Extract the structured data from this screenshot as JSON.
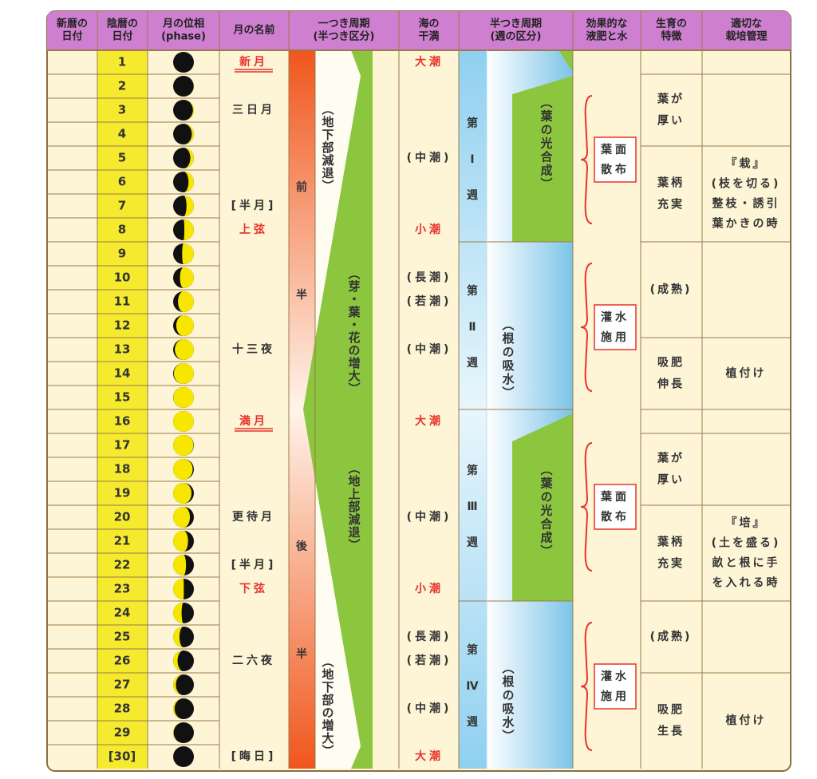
{
  "header": {
    "columns": [
      [
        "新暦の",
        "日付"
      ],
      [
        "陰暦の",
        "日付"
      ],
      [
        "月の位相",
        "(phase)"
      ],
      [
        "月の名前"
      ],
      [
        "一つき周期",
        "(半つき区分)"
      ],
      [
        "海の",
        "干満"
      ],
      [
        "半つき周期",
        "(週の区分)"
      ],
      [
        "効果的な",
        "液肥と水"
      ],
      [
        "生育の",
        "特徴"
      ],
      [
        "適切な",
        "栽培管理"
      ]
    ]
  },
  "lunar_days": [
    "1",
    "2",
    "3",
    "4",
    "5",
    "6",
    "7",
    "8",
    "9",
    "10",
    "11",
    "12",
    "13",
    "14",
    "15",
    "16",
    "17",
    "18",
    "19",
    "20",
    "21",
    "22",
    "23",
    "24",
    "25",
    "26",
    "27",
    "28",
    "29",
    "[30]"
  ],
  "moon_names": [
    {
      "text": "新月",
      "color": "#e8322a",
      "underline": true
    },
    null,
    "三日月",
    null,
    null,
    null,
    "[半月]",
    {
      "text": "上弦",
      "color": "#e8322a"
    },
    null,
    null,
    null,
    null,
    "十三夜",
    null,
    null,
    {
      "text": "満月",
      "color": "#e8322a",
      "underline": true
    },
    null,
    null,
    null,
    "更待月",
    null,
    "[半月]",
    {
      "text": "下弦",
      "color": "#e8322a"
    },
    null,
    null,
    "二六夜",
    null,
    null,
    null,
    "[晦日]"
  ],
  "tides": [
    {
      "text": "大潮",
      "color": "#e8322a"
    },
    null,
    null,
    null,
    "(中潮)",
    null,
    null,
    {
      "text": "小潮",
      "color": "#e8322a"
    },
    null,
    "(長潮)",
    "(若潮)",
    null,
    "(中潮)",
    null,
    null,
    {
      "text": "大潮",
      "color": "#e8322a"
    },
    null,
    null,
    null,
    "(中潮)",
    null,
    null,
    {
      "text": "小潮",
      "color": "#e8322a"
    },
    null,
    "(長潮)",
    "(若潮)",
    null,
    "(中潮)",
    null,
    {
      "text": "大潮",
      "color": "#e8322a"
    }
  ],
  "monthly_cycle": {
    "halves": [
      "前",
      "半",
      "後",
      "半"
    ],
    "phases": [
      "（地下部減退）",
      "（芽・葉・花の増大）",
      "（地上部減退）",
      "（地下部の増大）"
    ]
  },
  "weekly_cycle": {
    "weeks": [
      [
        "第",
        "Ⅰ",
        "週"
      ],
      [
        "第",
        "Ⅱ",
        "週"
      ],
      [
        "第",
        "Ⅲ",
        "週"
      ],
      [
        "第",
        "Ⅳ",
        "週"
      ]
    ],
    "labels": [
      "（葉の光合成）",
      "（根の吸水）",
      "（葉の光合成）",
      "（根の吸水）"
    ]
  },
  "fertilizer": [
    [
      "葉面",
      "散布"
    ],
    [
      "灌水",
      "施用"
    ],
    [
      "葉面",
      "散布"
    ],
    [
      "灌水",
      "施用"
    ]
  ],
  "growth": [
    [
      "葉が",
      "厚い"
    ],
    [
      "葉柄",
      "充実"
    ],
    [
      "(成熟)"
    ],
    [
      "吸肥",
      "伸長"
    ],
    [
      "葉が",
      "厚い"
    ],
    [
      "葉柄",
      "充実"
    ],
    [
      "(成熟)"
    ],
    [
      "吸肥",
      "生長"
    ]
  ],
  "management": [
    [
      "『栽』",
      "(枝を切る)",
      "整枝・誘引",
      "葉かきの時"
    ],
    [
      "植付け"
    ],
    [
      "『培』",
      "(土を盛る)",
      "畝と根に手",
      "を入れる時"
    ],
    [
      "植付け"
    ]
  ]
}
